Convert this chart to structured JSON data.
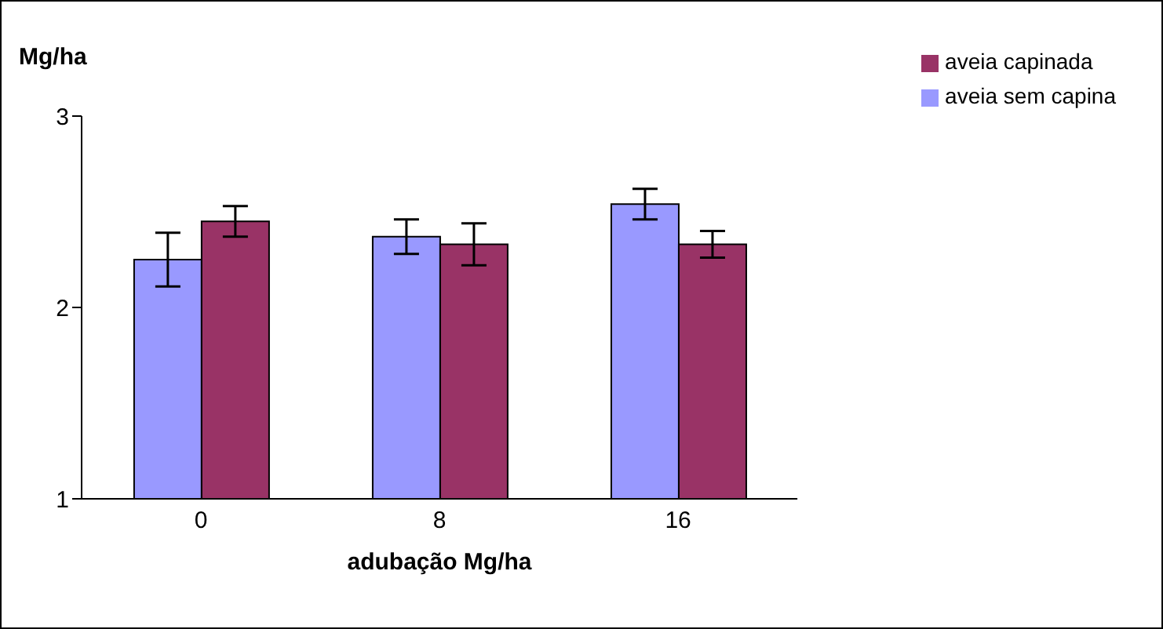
{
  "chart_data": {
    "type": "bar",
    "xlabel": "adubação Mg/ha",
    "ylabel": "Mg/ha",
    "categories": [
      "0",
      "8",
      "16"
    ],
    "series": [
      {
        "name": "aveia sem capina",
        "color": "#9999ff",
        "values": [
          2.25,
          2.37,
          2.54
        ],
        "errors": [
          0.14,
          0.09,
          0.08
        ]
      },
      {
        "name": "aveia capinada",
        "color": "#993366",
        "values": [
          2.45,
          2.33,
          2.33
        ],
        "errors": [
          0.08,
          0.11,
          0.07
        ]
      }
    ],
    "ylim": [
      1,
      3
    ],
    "yticks": [
      1,
      2,
      3
    ],
    "grid": false,
    "legend": "top right"
  }
}
